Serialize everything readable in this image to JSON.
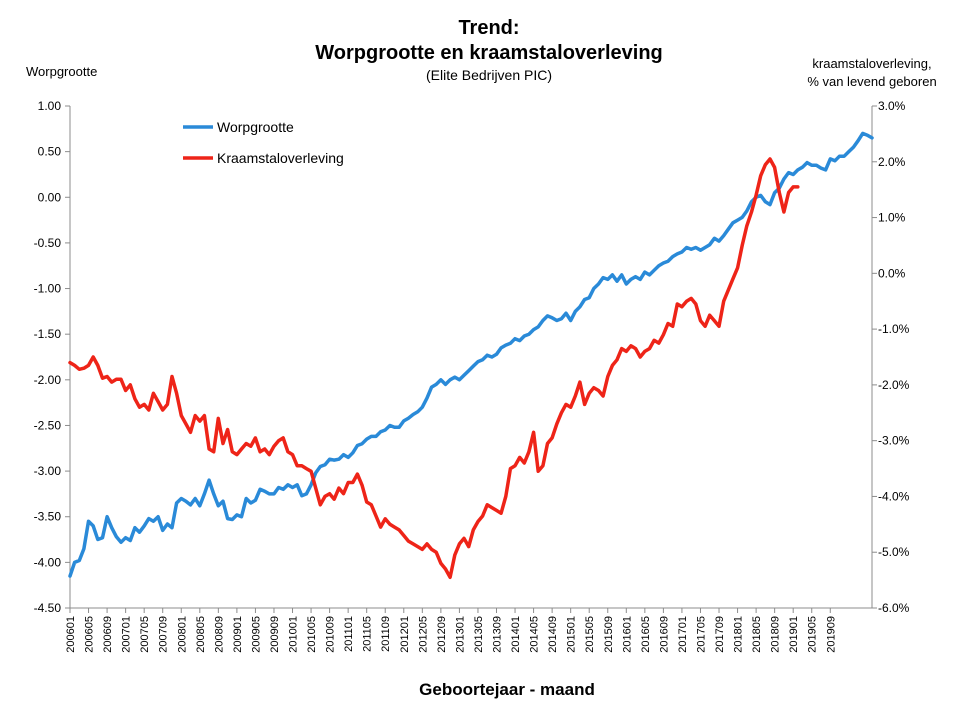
{
  "chart_data": {
    "type": "line",
    "title": "Trend:",
    "title2": "Worpgrootte en kraamstaloverleving",
    "subtitle": "(Elite Bedrijven PIC)",
    "ylabel_left": "Worpgrootte",
    "ylabel_right_line1": "kraamstaloverleving,",
    "ylabel_right_line2": "% van levend geboren",
    "xlabel": "Geboortejaar - maand",
    "ylim_left": [
      -4.5,
      1.0
    ],
    "ylim_right": [
      -6.0,
      3.0
    ],
    "left_ticks": [
      "1.00",
      "0.50",
      "0.00",
      "-0.50",
      "-1.00",
      "-1.50",
      "-2.00",
      "-2.50",
      "-3.00",
      "-3.50",
      "-4.00",
      "-4.50"
    ],
    "right_ticks": [
      "3.0%",
      "2.0%",
      "1.0%",
      "0.0%",
      "-1.0%",
      "-2.0%",
      "-3.0%",
      "-4.0%",
      "-5.0%",
      "-6.0%"
    ],
    "x_tick_labels": [
      "200601",
      "200605",
      "200609",
      "200701",
      "200705",
      "200709",
      "200801",
      "200805",
      "200809",
      "200901",
      "200905",
      "200909",
      "201001",
      "201005",
      "201009",
      "201101",
      "201105",
      "201109",
      "201201",
      "201205",
      "201209",
      "201301",
      "201305",
      "201309",
      "201401",
      "201405",
      "201409",
      "201501",
      "201505",
      "201509",
      "201601",
      "201605",
      "201609",
      "201701",
      "201705",
      "201709",
      "201801",
      "201805",
      "201809",
      "201901",
      "201905",
      "201909"
    ],
    "legend_position": "top-left",
    "grid": false,
    "series": [
      {
        "name": "Worpgrootte",
        "axis": "left",
        "color": "#2a8ad8",
        "values": [
          -4.15,
          -4.0,
          -3.98,
          -3.85,
          -3.55,
          -3.6,
          -3.75,
          -3.73,
          -3.5,
          -3.62,
          -3.72,
          -3.78,
          -3.73,
          -3.76,
          -3.62,
          -3.67,
          -3.6,
          -3.52,
          -3.55,
          -3.5,
          -3.65,
          -3.58,
          -3.62,
          -3.35,
          -3.3,
          -3.33,
          -3.37,
          -3.3,
          -3.38,
          -3.25,
          -3.1,
          -3.25,
          -3.38,
          -3.33,
          -3.52,
          -3.53,
          -3.48,
          -3.5,
          -3.3,
          -3.35,
          -3.32,
          -3.2,
          -3.22,
          -3.25,
          -3.25,
          -3.18,
          -3.2,
          -3.15,
          -3.18,
          -3.15,
          -3.27,
          -3.25,
          -3.15,
          -3.02,
          -2.95,
          -2.93,
          -2.87,
          -2.88,
          -2.87,
          -2.82,
          -2.85,
          -2.8,
          -2.72,
          -2.7,
          -2.65,
          -2.62,
          -2.62,
          -2.57,
          -2.55,
          -2.5,
          -2.52,
          -2.52,
          -2.45,
          -2.42,
          -2.38,
          -2.35,
          -2.3,
          -2.2,
          -2.08,
          -2.05,
          -2.0,
          -2.05,
          -2.0,
          -1.97,
          -2.0,
          -1.95,
          -1.9,
          -1.85,
          -1.8,
          -1.78,
          -1.73,
          -1.75,
          -1.72,
          -1.65,
          -1.62,
          -1.6,
          -1.55,
          -1.57,
          -1.52,
          -1.5,
          -1.45,
          -1.42,
          -1.35,
          -1.3,
          -1.32,
          -1.35,
          -1.33,
          -1.27,
          -1.35,
          -1.25,
          -1.2,
          -1.12,
          -1.1,
          -1.0,
          -0.95,
          -0.88,
          -0.9,
          -0.85,
          -0.92,
          -0.85,
          -0.95,
          -0.9,
          -0.87,
          -0.9,
          -0.82,
          -0.85,
          -0.8,
          -0.75,
          -0.72,
          -0.7,
          -0.65,
          -0.62,
          -0.6,
          -0.55,
          -0.57,
          -0.55,
          -0.58,
          -0.55,
          -0.52,
          -0.45,
          -0.48,
          -0.42,
          -0.35,
          -0.28,
          -0.25,
          -0.22,
          -0.15,
          -0.05,
          0.0,
          0.02,
          -0.05,
          -0.08,
          0.05,
          0.1,
          0.2,
          0.27,
          0.25,
          0.3,
          0.33,
          0.38,
          0.35,
          0.35,
          0.32,
          0.3,
          0.42,
          0.4,
          0.45,
          0.45,
          0.5,
          0.55,
          0.62,
          0.7,
          0.68,
          0.65
        ]
      },
      {
        "name": "Kraamstaloverleving",
        "axis": "right",
        "color": "#ee2418",
        "values": [
          -1.6,
          -1.65,
          -1.72,
          -1.7,
          -1.65,
          -1.5,
          -1.65,
          -1.88,
          -1.85,
          -1.95,
          -1.9,
          -1.9,
          -2.1,
          -2.0,
          -2.25,
          -2.4,
          -2.35,
          -2.45,
          -2.15,
          -2.3,
          -2.45,
          -2.35,
          -1.85,
          -2.15,
          -2.55,
          -2.7,
          -2.85,
          -2.55,
          -2.65,
          -2.55,
          -3.15,
          -3.2,
          -2.6,
          -3.05,
          -2.8,
          -3.2,
          -3.25,
          -3.15,
          -3.05,
          -3.1,
          -2.95,
          -3.2,
          -3.15,
          -3.25,
          -3.1,
          -3.0,
          -2.95,
          -3.2,
          -3.25,
          -3.45,
          -3.45,
          -3.5,
          -3.55,
          -3.85,
          -4.15,
          -4.0,
          -3.95,
          -4.05,
          -3.85,
          -3.95,
          -3.75,
          -3.75,
          -3.6,
          -3.8,
          -4.1,
          -4.15,
          -4.35,
          -4.55,
          -4.4,
          -4.5,
          -4.55,
          -4.6,
          -4.7,
          -4.8,
          -4.85,
          -4.9,
          -4.95,
          -4.85,
          -4.95,
          -5.0,
          -5.2,
          -5.3,
          -5.45,
          -5.05,
          -4.85,
          -4.75,
          -4.9,
          -4.6,
          -4.45,
          -4.35,
          -4.15,
          -4.2,
          -4.25,
          -4.3,
          -4.0,
          -3.5,
          -3.45,
          -3.3,
          -3.4,
          -3.2,
          -2.85,
          -3.55,
          -3.45,
          -3.05,
          -2.95,
          -2.7,
          -2.5,
          -2.35,
          -2.4,
          -2.2,
          -1.95,
          -2.35,
          -2.15,
          -2.05,
          -2.1,
          -2.2,
          -1.85,
          -1.65,
          -1.55,
          -1.35,
          -1.4,
          -1.3,
          -1.35,
          -1.5,
          -1.4,
          -1.35,
          -1.2,
          -1.25,
          -1.1,
          -0.9,
          -0.95,
          -0.55,
          -0.6,
          -0.5,
          -0.45,
          -0.55,
          -0.85,
          -0.95,
          -0.75,
          -0.85,
          -0.95,
          -0.5,
          -0.3,
          -0.1,
          0.1,
          0.5,
          0.85,
          1.1,
          1.4,
          1.75,
          1.95,
          2.05,
          1.9,
          1.45,
          1.1,
          1.45,
          1.55,
          1.55
        ]
      }
    ]
  }
}
